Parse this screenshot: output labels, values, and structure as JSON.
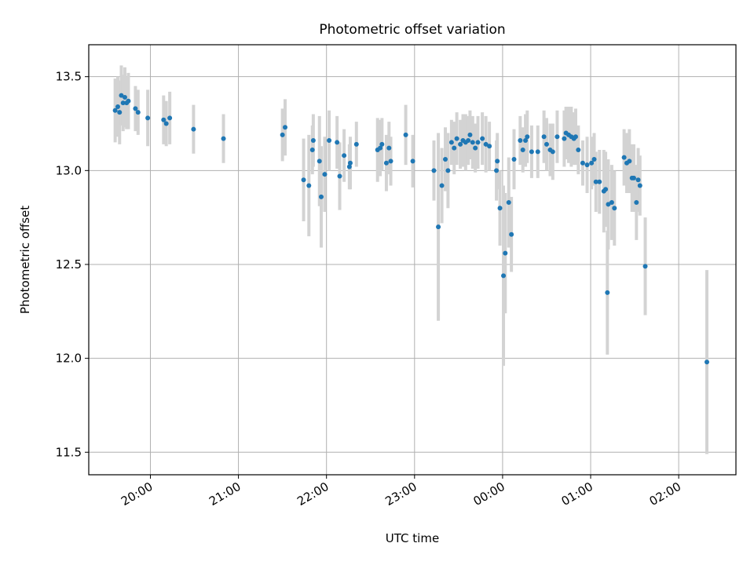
{
  "chart_data": {
    "type": "scatter",
    "title": "Photometric offset variation",
    "xlabel": "UTC time",
    "ylabel": "Photometric offset",
    "x_unit": "hours (UTC, continuing past midnight as 24+)",
    "xlim": [
      19.3,
      26.65
    ],
    "ylim": [
      11.38,
      13.67
    ],
    "grid": true,
    "x_ticks": [
      {
        "value": 20,
        "label": "20:00"
      },
      {
        "value": 21,
        "label": "21:00"
      },
      {
        "value": 22,
        "label": "22:00"
      },
      {
        "value": 23,
        "label": "23:00"
      },
      {
        "value": 24,
        "label": "00:00"
      },
      {
        "value": 25,
        "label": "01:00"
      },
      {
        "value": 26,
        "label": "02:00"
      }
    ],
    "y_ticks": [
      {
        "value": 11.5,
        "label": "11.5"
      },
      {
        "value": 12.0,
        "label": "12.0"
      },
      {
        "value": 12.5,
        "label": "12.5"
      },
      {
        "value": 13.0,
        "label": "13.0"
      },
      {
        "value": 13.5,
        "label": "13.5"
      }
    ],
    "marker_color": "#1f77b4",
    "errorbar_color": "#d3d3d3",
    "points": [
      [
        19.6,
        13.32,
        0.17
      ],
      [
        19.63,
        13.34,
        0.16
      ],
      [
        19.65,
        13.31,
        0.17
      ],
      [
        19.67,
        13.4,
        0.16
      ],
      [
        19.69,
        13.36,
        0.15
      ],
      [
        19.71,
        13.39,
        0.16
      ],
      [
        19.73,
        13.36,
        0.14
      ],
      [
        19.75,
        13.37,
        0.15
      ],
      [
        19.83,
        13.33,
        0.12
      ],
      [
        19.86,
        13.31,
        0.12
      ],
      [
        19.97,
        13.28,
        0.15
      ],
      [
        20.15,
        13.27,
        0.13
      ],
      [
        20.18,
        13.25,
        0.12
      ],
      [
        20.22,
        13.28,
        0.14
      ],
      [
        20.49,
        13.22,
        0.13
      ],
      [
        20.83,
        13.17,
        0.13
      ],
      [
        21.5,
        13.19,
        0.14
      ],
      [
        21.53,
        13.23,
        0.15
      ],
      [
        21.74,
        12.95,
        0.22
      ],
      [
        21.8,
        12.92,
        0.27
      ],
      [
        21.84,
        13.11,
        0.13
      ],
      [
        21.85,
        13.16,
        0.14
      ],
      [
        21.92,
        13.05,
        0.24
      ],
      [
        21.94,
        12.86,
        0.27
      ],
      [
        21.98,
        12.98,
        0.2
      ],
      [
        22.03,
        13.16,
        0.16
      ],
      [
        22.12,
        13.15,
        0.14
      ],
      [
        22.15,
        12.97,
        0.18
      ],
      [
        22.2,
        13.08,
        0.14
      ],
      [
        22.26,
        13.02,
        0.12
      ],
      [
        22.27,
        13.04,
        0.14
      ],
      [
        22.34,
        13.14,
        0.12
      ],
      [
        22.58,
        13.11,
        0.17
      ],
      [
        22.61,
        13.12,
        0.15
      ],
      [
        22.63,
        13.14,
        0.14
      ],
      [
        22.68,
        13.04,
        0.15
      ],
      [
        22.71,
        13.12,
        0.14
      ],
      [
        22.73,
        13.05,
        0.13
      ],
      [
        22.9,
        13.19,
        0.16
      ],
      [
        22.98,
        13.05,
        0.14
      ],
      [
        23.22,
        13.0,
        0.16
      ],
      [
        23.27,
        12.7,
        0.5
      ],
      [
        23.31,
        12.92,
        0.2
      ],
      [
        23.35,
        13.06,
        0.17
      ],
      [
        23.38,
        13.0,
        0.2
      ],
      [
        23.42,
        13.15,
        0.12
      ],
      [
        23.45,
        13.12,
        0.14
      ],
      [
        23.48,
        13.17,
        0.14
      ],
      [
        23.52,
        13.14,
        0.13
      ],
      [
        23.55,
        13.16,
        0.14
      ],
      [
        23.58,
        13.15,
        0.15
      ],
      [
        23.61,
        13.16,
        0.13
      ],
      [
        23.63,
        13.19,
        0.13
      ],
      [
        23.66,
        13.15,
        0.14
      ],
      [
        23.69,
        13.12,
        0.13
      ],
      [
        23.72,
        13.15,
        0.14
      ],
      [
        23.77,
        13.17,
        0.14
      ],
      [
        23.81,
        13.14,
        0.15
      ],
      [
        23.85,
        13.13,
        0.13
      ],
      [
        23.93,
        13.0,
        0.16
      ],
      [
        23.94,
        13.05,
        0.15
      ],
      [
        23.97,
        12.8,
        0.2
      ],
      [
        24.01,
        12.44,
        0.48
      ],
      [
        24.03,
        12.56,
        0.32
      ],
      [
        24.07,
        12.83,
        0.24
      ],
      [
        24.1,
        12.66,
        0.2
      ],
      [
        24.13,
        13.06,
        0.16
      ],
      [
        24.2,
        13.16,
        0.13
      ],
      [
        24.23,
        13.11,
        0.12
      ],
      [
        24.26,
        13.16,
        0.14
      ],
      [
        24.28,
        13.18,
        0.14
      ],
      [
        24.33,
        13.1,
        0.14
      ],
      [
        24.4,
        13.1,
        0.14
      ],
      [
        24.47,
        13.18,
        0.14
      ],
      [
        24.5,
        13.14,
        0.14
      ],
      [
        24.54,
        13.11,
        0.14
      ],
      [
        24.57,
        13.1,
        0.15
      ],
      [
        24.62,
        13.18,
        0.14
      ],
      [
        24.7,
        13.17,
        0.15
      ],
      [
        24.72,
        13.2,
        0.14
      ],
      [
        24.75,
        13.19,
        0.15
      ],
      [
        24.78,
        13.18,
        0.16
      ],
      [
        24.81,
        13.17,
        0.14
      ],
      [
        24.83,
        13.18,
        0.15
      ],
      [
        24.86,
        13.11,
        0.13
      ],
      [
        24.91,
        13.04,
        0.12
      ],
      [
        24.96,
        13.03,
        0.15
      ],
      [
        25.01,
        13.04,
        0.14
      ],
      [
        25.04,
        13.06,
        0.14
      ],
      [
        25.06,
        12.94,
        0.16
      ],
      [
        25.1,
        12.94,
        0.17
      ],
      [
        25.15,
        12.89,
        0.22
      ],
      [
        25.17,
        12.9,
        0.2
      ],
      [
        25.19,
        12.35,
        0.33
      ],
      [
        25.2,
        12.82,
        0.24
      ],
      [
        25.24,
        12.83,
        0.2
      ],
      [
        25.27,
        12.8,
        0.2
      ],
      [
        25.38,
        13.07,
        0.15
      ],
      [
        25.41,
        13.04,
        0.16
      ],
      [
        25.44,
        13.05,
        0.17
      ],
      [
        25.47,
        12.96,
        0.18
      ],
      [
        25.49,
        12.96,
        0.18
      ],
      [
        25.52,
        12.83,
        0.2
      ],
      [
        25.54,
        12.95,
        0.17
      ],
      [
        25.56,
        12.92,
        0.16
      ],
      [
        25.62,
        12.49,
        0.26
      ],
      [
        26.32,
        11.98,
        0.49
      ]
    ]
  }
}
